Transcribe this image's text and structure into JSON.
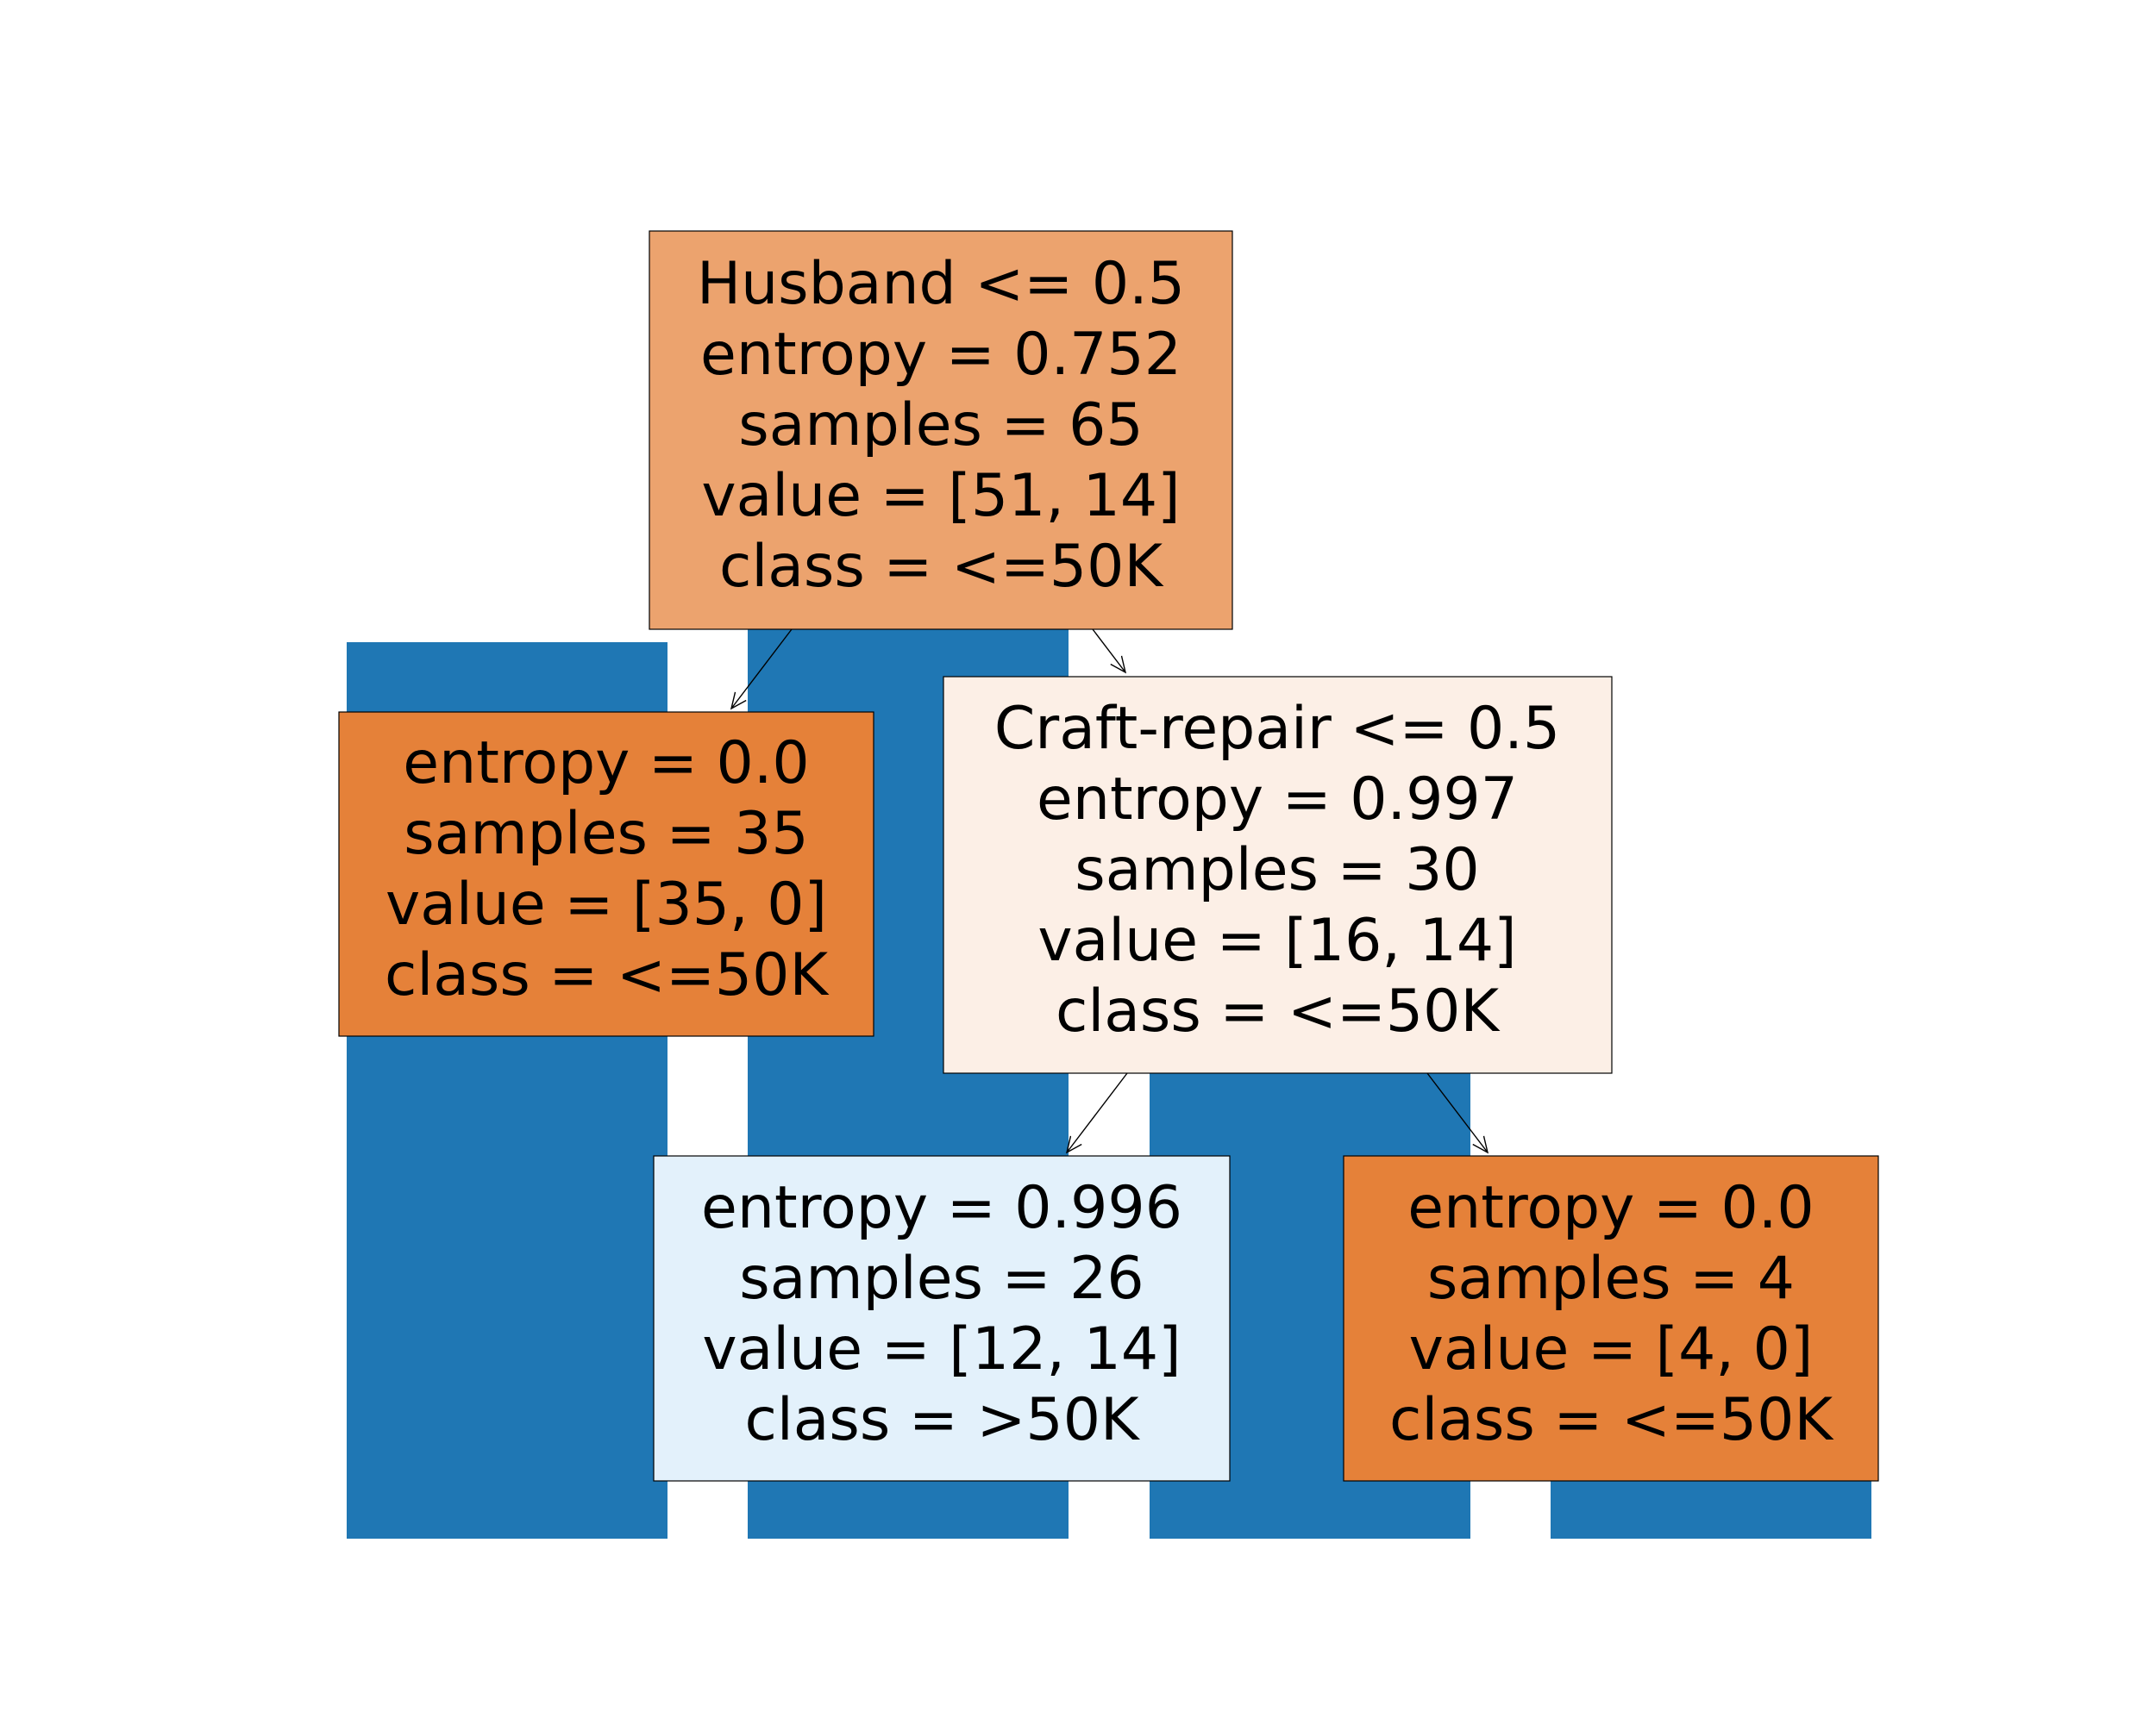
{
  "colors": {
    "bar": "#1f77b4",
    "edge": "#000000",
    "node_border": "#000000"
  },
  "background_bars": [
    {
      "index": 0
    },
    {
      "index": 1
    },
    {
      "index": 2
    },
    {
      "index": 3
    }
  ],
  "tree": {
    "root": {
      "lines": [
        "Husband <= 0.5",
        "entropy = 0.752",
        "samples = 65",
        "value = [51, 14]",
        "class = <=50K"
      ],
      "fill": "#eca36e"
    },
    "left_leaf": {
      "lines": [
        "entropy = 0.0",
        "samples = 35",
        "value = [35, 0]",
        "class = <=50K"
      ],
      "fill": "#e58139"
    },
    "right_split": {
      "lines": [
        "Craft-repair <= 0.5",
        "entropy = 0.997",
        "samples = 30",
        "value = [16, 14]",
        "class = <=50K"
      ],
      "fill": "#fcefe6"
    },
    "right_left_leaf": {
      "lines": [
        "entropy = 0.996",
        "samples = 26",
        "value = [12, 14]",
        "class = >50K"
      ],
      "fill": "#e3f1fb"
    },
    "right_right_leaf": {
      "lines": [
        "entropy = 0.0",
        "samples = 4",
        "value = [4, 0]",
        "class = <=50K"
      ],
      "fill": "#e58139"
    }
  }
}
